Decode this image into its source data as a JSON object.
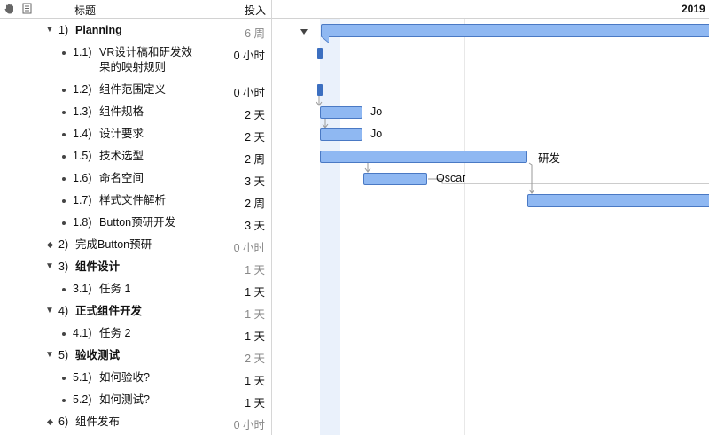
{
  "header": {
    "col_title": "标题",
    "col_effort": "投入",
    "year": "2019",
    "icons": [
      "hand-icon",
      "note-icon"
    ]
  },
  "rows": [
    {
      "num": "1)",
      "title": "Planning",
      "effort": "6 周",
      "kind": "group"
    },
    {
      "num": "1.1)",
      "title": "VR设计稿和研发效果的映射规则",
      "title_line1": "VR设计稿和研发效",
      "title_line2": "果的映射规则",
      "effort": "0 小时",
      "kind": "task"
    },
    {
      "num": "1.2)",
      "title": "组件范围定义",
      "effort": "0 小时",
      "kind": "task"
    },
    {
      "num": "1.3)",
      "title": "组件规格",
      "effort": "2 天",
      "kind": "task"
    },
    {
      "num": "1.4)",
      "title": "设计要求",
      "effort": "2 天",
      "kind": "task"
    },
    {
      "num": "1.5)",
      "title": "技术选型",
      "effort": "2 周",
      "kind": "task"
    },
    {
      "num": "1.6)",
      "title": "命名空间",
      "effort": "3 天",
      "kind": "task"
    },
    {
      "num": "1.7)",
      "title": "样式文件解析",
      "effort": "2 周",
      "kind": "task"
    },
    {
      "num": "1.8)",
      "title": "Button预研开发",
      "effort": "3 天",
      "kind": "task"
    },
    {
      "num": "2)",
      "title": "完成Button预研",
      "effort": "0 小时",
      "kind": "milestone"
    },
    {
      "num": "3)",
      "title": "组件设计",
      "effort": "1 天",
      "kind": "group"
    },
    {
      "num": "3.1)",
      "title": "任务 1",
      "effort": "1 天",
      "kind": "task"
    },
    {
      "num": "4)",
      "title": "正式组件开发",
      "effort": "1 天",
      "kind": "group"
    },
    {
      "num": "4.1)",
      "title": "任务 2",
      "effort": "1 天",
      "kind": "task"
    },
    {
      "num": "5)",
      "title": "验收测试",
      "effort": "2 天",
      "kind": "group"
    },
    {
      "num": "5.1)",
      "title": "如何验收?",
      "effort": "1 天",
      "kind": "task"
    },
    {
      "num": "5.2)",
      "title": "如何测试?",
      "effort": "1 天",
      "kind": "task"
    },
    {
      "num": "6)",
      "title": "组件发布",
      "effort": "0 小时",
      "kind": "milestone"
    }
  ],
  "gantt": {
    "resources": {
      "r3": "Jo",
      "r4": "Jo",
      "r5": "研发",
      "r6": "Oscar"
    }
  }
}
